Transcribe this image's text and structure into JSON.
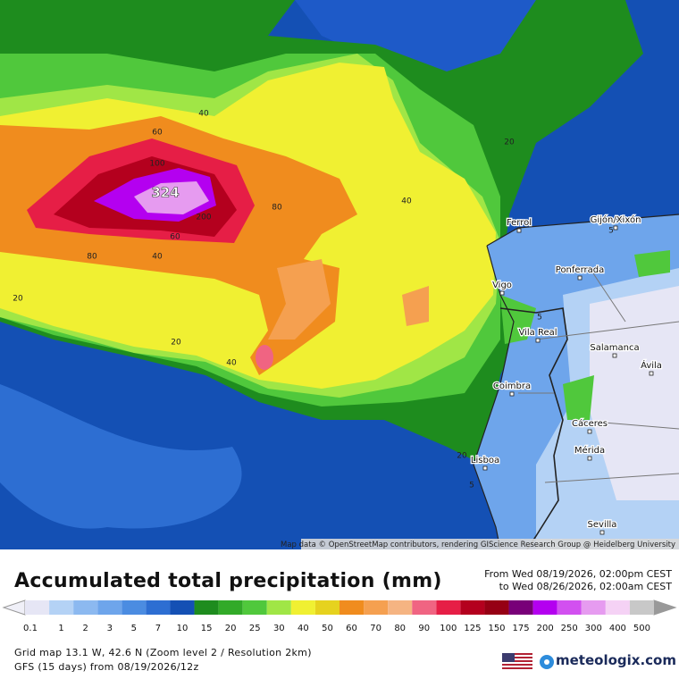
{
  "map": {
    "attribution": "Map data © OpenStreetMap contributors, rendering GIScience Research Group @ Heidelberg University",
    "max_label": "324",
    "contour_labels": [
      "40",
      "60",
      "100",
      "200",
      "80",
      "60",
      "80",
      "40",
      "20",
      "40",
      "20",
      "40",
      "20",
      "5",
      "5",
      "5",
      "20"
    ],
    "cities": [
      "Ferrol",
      "Gijón/Xixón",
      "Ponferrada",
      "Vigo",
      "Vila Real",
      "Salamanca",
      "Ávila",
      "Coimbra",
      "Cáceres",
      "Mérida",
      "Lisboa",
      "Sevilla"
    ]
  },
  "header": {
    "title": "Accumulated total precipitation (mm)",
    "period_from": "From Wed 08/19/2026, 02:00pm CEST",
    "period_to": "to Wed 08/26/2026, 02:00am CEST"
  },
  "legend": {
    "labels": [
      "0.1",
      "1",
      "2",
      "3",
      "5",
      "7",
      "10",
      "15",
      "20",
      "25",
      "30",
      "40",
      "50",
      "60",
      "70",
      "80",
      "90",
      "100",
      "125",
      "150",
      "175",
      "200",
      "250",
      "300",
      "400",
      "500"
    ],
    "colors": [
      "#e6e6f5",
      "#b4d2f5",
      "#8cb9f0",
      "#6ea5eb",
      "#4b8ce1",
      "#2d6ed2",
      "#1450b4",
      "#1e8c1e",
      "#32aa28",
      "#50c83c",
      "#a0e646",
      "#f0f032",
      "#e6d21e",
      "#f08c1e",
      "#f5a050",
      "#f5b482",
      "#f06482",
      "#e61e46",
      "#b4001e",
      "#960014",
      "#780078",
      "#b400f0",
      "#d250f0",
      "#e69bf0",
      "#f5d2f5",
      "#c8c8c8"
    ]
  },
  "footer": {
    "grid": "Grid map 13.1 W, 42.6 N (Zoom level 2 / Resolution 2km)",
    "model": "GFS (15 days) from  08/19/2026/12z",
    "logo": "meteologix.com"
  }
}
